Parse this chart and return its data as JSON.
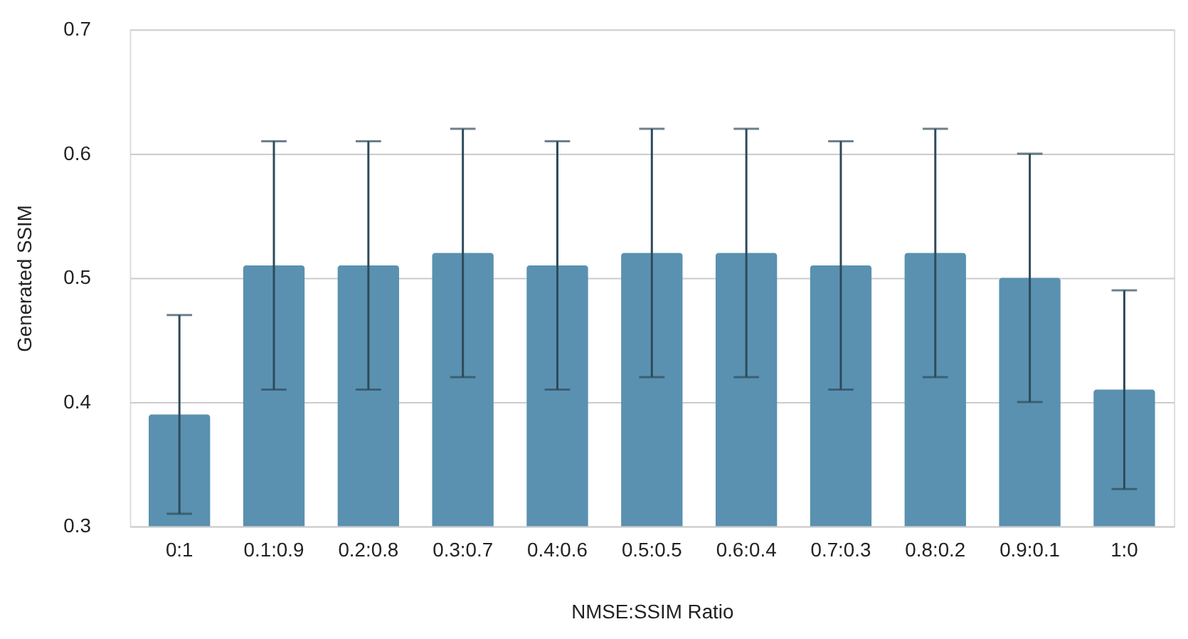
{
  "chart_data": {
    "type": "bar",
    "xlabel": "NMSE:SSIM Ratio",
    "ylabel": "Generated SSIM",
    "categories": [
      "0:1",
      "0.1:0.9",
      "0.2:0.8",
      "0.3:0.7",
      "0.4:0.6",
      "0.5:0.5",
      "0.6:0.4",
      "0.7:0.3",
      "0.8:0.2",
      "0.9:0.1",
      "1:0"
    ],
    "values": [
      0.39,
      0.51,
      0.51,
      0.52,
      0.51,
      0.52,
      0.52,
      0.51,
      0.52,
      0.5,
      0.41
    ],
    "errors": [
      0.08,
      0.1,
      0.1,
      0.1,
      0.1,
      0.1,
      0.1,
      0.1,
      0.1,
      0.1,
      0.08
    ],
    "color": "#5a91b0",
    "ylim": [
      0.3,
      0.7
    ],
    "yticks": [
      0.3,
      0.4,
      0.5,
      0.6,
      0.7
    ],
    "grid": "y"
  }
}
